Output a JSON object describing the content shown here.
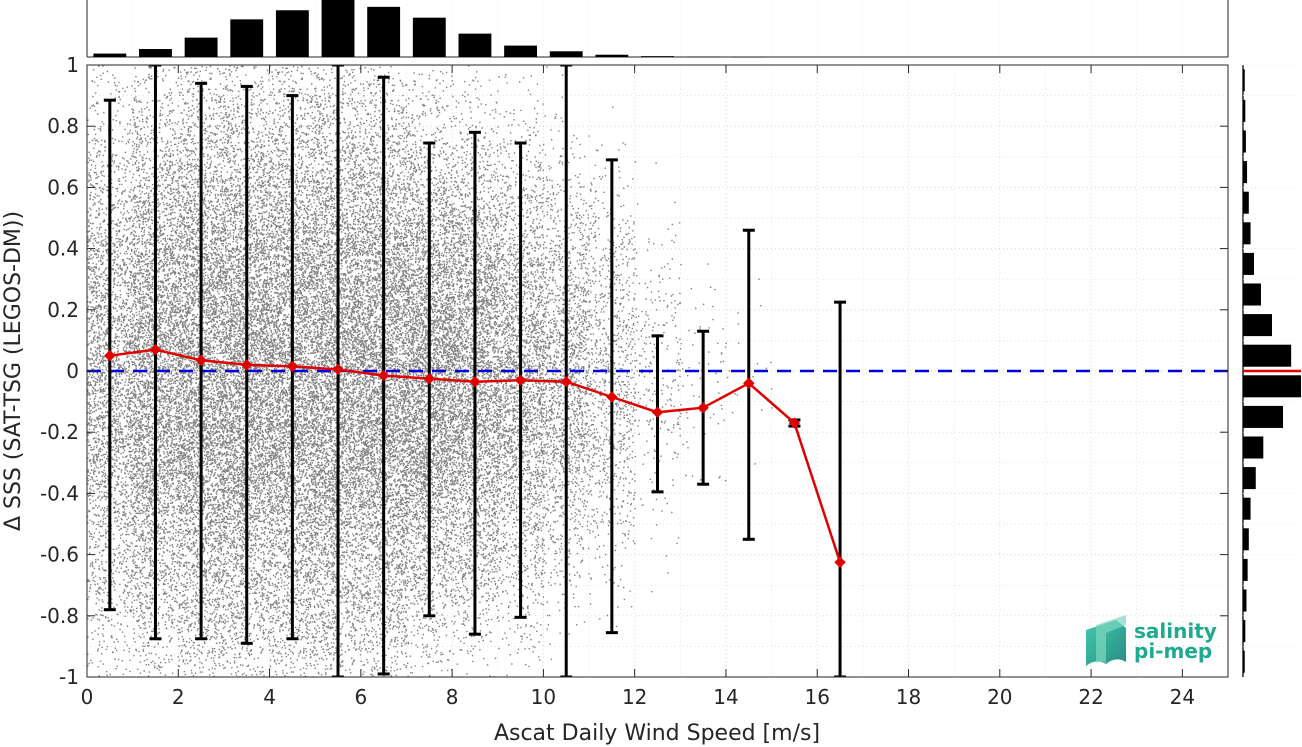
{
  "chart_data": {
    "type": "scatter",
    "xlabel": "Ascat Daily Wind Speed [m/s]",
    "ylabel": "Δ SSS (SAT-TSG (LEGOS-DM))",
    "xlim": [
      0,
      25
    ],
    "ylim": [
      -1,
      1
    ],
    "xticks": [
      0,
      2,
      4,
      6,
      8,
      10,
      12,
      14,
      16,
      18,
      20,
      22,
      24
    ],
    "yticks": [
      -1,
      -0.8,
      -0.6,
      -0.4,
      -0.2,
      0,
      0.2,
      0.4,
      0.6,
      0.8,
      1
    ],
    "xtick_labels": [
      "0",
      "2",
      "4",
      "6",
      "8",
      "10",
      "12",
      "14",
      "16",
      "18",
      "20",
      "22",
      "24"
    ],
    "ytick_labels": [
      "-1",
      "-0.8",
      "-0.6",
      "-0.4",
      "-0.2",
      "0",
      "0.2",
      "0.4",
      "0.6",
      "0.8",
      "1"
    ],
    "grid": true,
    "reference_line": {
      "y": 0,
      "style": "dashed",
      "color": "#0000dd"
    },
    "scatter_cloud": {
      "color": "#808080",
      "density_by_wind_bin": [
        {
          "x_from": 0,
          "x_to": 1,
          "spread": 0.45,
          "density": 0.55
        },
        {
          "x_from": 1,
          "x_to": 2,
          "spread": 0.48,
          "density": 0.85
        },
        {
          "x_from": 2,
          "x_to": 3,
          "spread": 0.5,
          "density": 1.0
        },
        {
          "x_from": 3,
          "x_to": 4,
          "spread": 0.5,
          "density": 1.0
        },
        {
          "x_from": 4,
          "x_to": 5,
          "spread": 0.5,
          "density": 1.0
        },
        {
          "x_from": 5,
          "x_to": 6,
          "spread": 0.52,
          "density": 1.0
        },
        {
          "x_from": 6,
          "x_to": 7,
          "spread": 0.48,
          "density": 1.0
        },
        {
          "x_from": 7,
          "x_to": 8,
          "spread": 0.42,
          "density": 0.9
        },
        {
          "x_from": 8,
          "x_to": 9,
          "spread": 0.4,
          "density": 0.75
        },
        {
          "x_from": 9,
          "x_to": 10,
          "spread": 0.38,
          "density": 0.55
        },
        {
          "x_from": 10,
          "x_to": 11,
          "spread": 0.34,
          "density": 0.35
        },
        {
          "x_from": 11,
          "x_to": 12,
          "spread": 0.32,
          "density": 0.18
        },
        {
          "x_from": 12,
          "x_to": 13,
          "spread": 0.25,
          "density": 0.05
        },
        {
          "x_from": 13,
          "x_to": 14,
          "spread": 0.2,
          "density": 0.012
        },
        {
          "x_from": 14,
          "x_to": 15,
          "spread": 0.15,
          "density": 0.004
        }
      ]
    },
    "series": [
      {
        "style": "line-with-diamond-markers",
        "color": "#e00000",
        "x": [
          0.5,
          1.5,
          2.5,
          3.5,
          4.5,
          5.5,
          6.5,
          7.5,
          8.5,
          9.5,
          10.5,
          11.5,
          12.5,
          13.5,
          14.5,
          15.5,
          16.5
        ],
        "mean": [
          0.05,
          0.07,
          0.035,
          0.02,
          0.015,
          0.005,
          -0.015,
          -0.025,
          -0.035,
          -0.03,
          -0.035,
          -0.085,
          -0.135,
          -0.12,
          -0.04,
          -0.17,
          -0.625
        ],
        "error_low": [
          -0.78,
          -0.875,
          -0.875,
          -0.89,
          -0.875,
          -1.0,
          -0.99,
          -0.8,
          -0.86,
          -0.805,
          -1.0,
          -0.855,
          -0.395,
          -0.37,
          -0.55,
          -0.18,
          -1.0
        ],
        "error_high": [
          0.885,
          1.0,
          0.94,
          0.93,
          0.9,
          1.0,
          0.96,
          0.745,
          0.78,
          0.745,
          1.0,
          0.69,
          0.115,
          0.13,
          0.46,
          -0.16,
          0.225
        ],
        "error_color": "#000000"
      }
    ],
    "top_histogram": {
      "bin_centers": [
        0.5,
        1.5,
        2.5,
        3.5,
        4.5,
        5.5,
        6.5,
        7.5,
        8.5,
        9.5,
        10.5,
        11.5,
        12.5,
        13.5,
        14.5
      ],
      "relative_counts": [
        0.06,
        0.14,
        0.34,
        0.66,
        0.82,
        1.0,
        0.88,
        0.69,
        0.41,
        0.2,
        0.1,
        0.04,
        0.015,
        0.005,
        0.002
      ]
    },
    "right_histogram": {
      "bin_centers": [
        -0.95,
        -0.85,
        -0.75,
        -0.65,
        -0.55,
        -0.45,
        -0.35,
        -0.25,
        -0.15,
        -0.05,
        0.05,
        0.15,
        0.25,
        0.35,
        0.45,
        0.55,
        0.65,
        0.75,
        0.85,
        0.95
      ],
      "relative_counts": [
        0.03,
        0.04,
        0.06,
        0.08,
        0.1,
        0.13,
        0.22,
        0.35,
        0.69,
        1.0,
        0.83,
        0.5,
        0.31,
        0.19,
        0.13,
        0.1,
        0.07,
        0.05,
        0.04,
        0.03
      ],
      "median_marker_y": 0,
      "median_color": "#e00000"
    }
  },
  "logo": {
    "line1": "salinity",
    "line2": "pi-mep",
    "color": "#1fa98e"
  }
}
